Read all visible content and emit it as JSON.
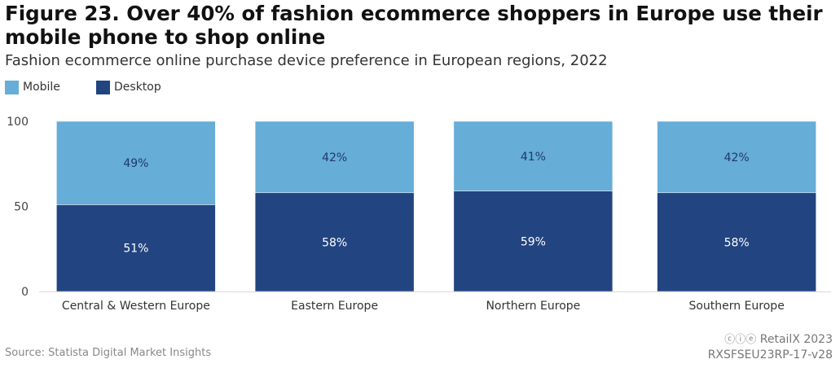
{
  "title": "Figure 23. Over 40% of fashion ecommerce shoppers in Europe use their mobile phone to shop online",
  "subtitle": "Fashion ecommerce online purchase device preference in European regions, 2022",
  "footer": {
    "source": "Source: Statista Digital Market Insights",
    "brand": "RetailX 2023",
    "license_icons": "cc by nd",
    "report_code": "RXSFSEU23RP-17-v28"
  },
  "colors": {
    "mobile": "#66add8",
    "desktop": "#224480",
    "axis": "#444444"
  },
  "chart_data": {
    "type": "bar",
    "stacked": true,
    "categories": [
      "Central & Western Europe",
      "Eastern Europe",
      "Northern Europe",
      "Southern Europe"
    ],
    "series": [
      {
        "name": "Desktop",
        "values": [
          51,
          58,
          59,
          58
        ],
        "labels": [
          "51%",
          "58%",
          "59%",
          "58%"
        ],
        "color": "#224480"
      },
      {
        "name": "Mobile",
        "values": [
          49,
          42,
          41,
          42
        ],
        "labels": [
          "49%",
          "42%",
          "41%",
          "42%"
        ],
        "color": "#66add8"
      }
    ],
    "legend": [
      {
        "name": "Mobile",
        "color": "#66add8"
      },
      {
        "name": "Desktop",
        "color": "#224480"
      }
    ],
    "legend_position": "top-left",
    "ylim": [
      0,
      100
    ],
    "yticks": [
      0,
      50,
      100
    ],
    "xlabel": "",
    "ylabel": "",
    "grid": false
  }
}
